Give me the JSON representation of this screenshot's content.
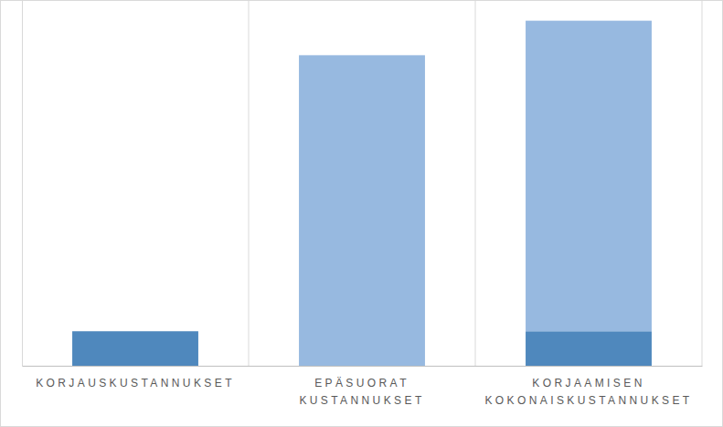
{
  "chart_data": {
    "type": "bar",
    "categories": [
      "KORJAUSKUSTANNUKSET",
      "EPÄSUORAT KUSTANNUKSET",
      "KORJAAMISEN KOKONAISKUSTANNUKSET"
    ],
    "series": [
      {
        "color": "#4f88bd",
        "values": [
          1,
          null,
          1
        ]
      },
      {
        "color": "#97b9e0",
        "values": [
          null,
          9,
          9
        ]
      }
    ],
    "stacked": true,
    "ylim": [
      0,
      10.6
    ],
    "tick_labels": "x"
  }
}
